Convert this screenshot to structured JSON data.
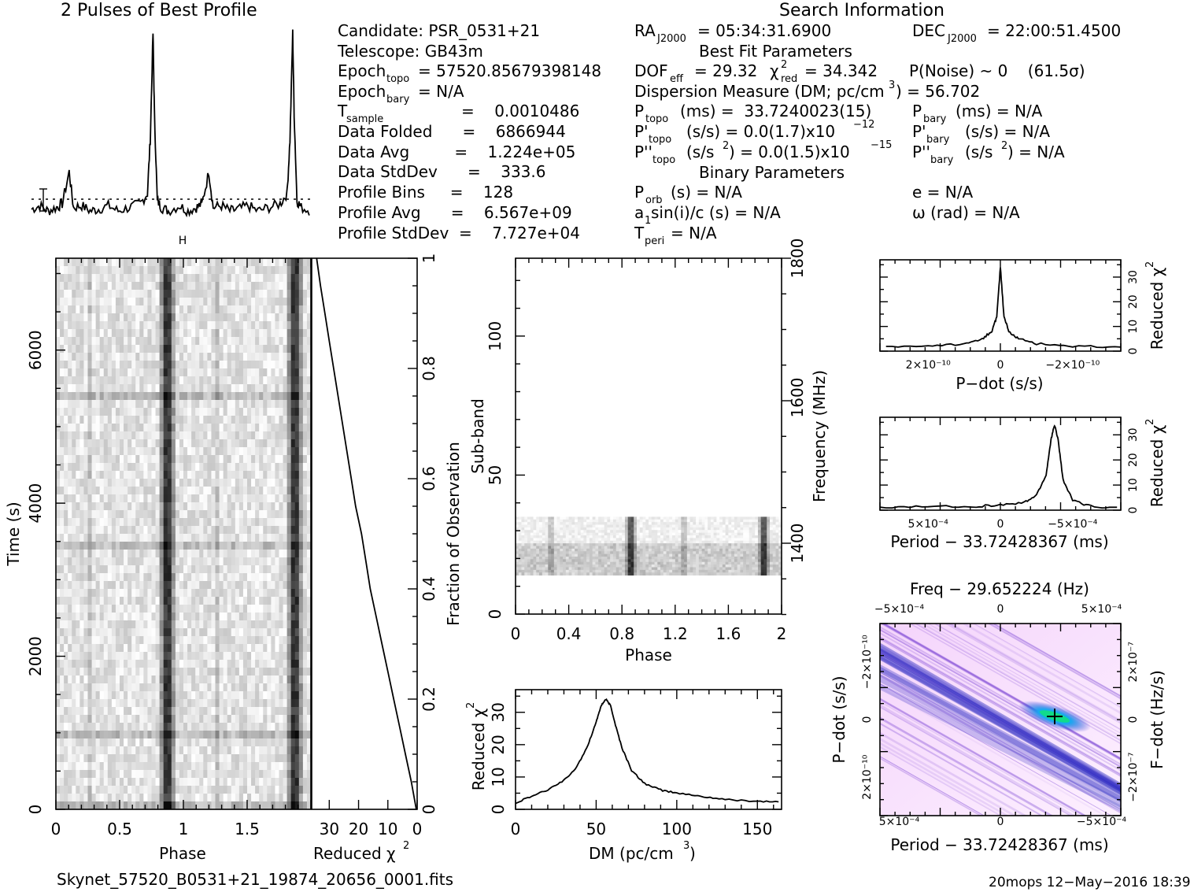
{
  "header": {
    "profile_title": "2 Pulses of Best Profile",
    "search_title": "Search Information",
    "best_fit_title": "Best Fit Parameters",
    "binary_title": "Binary Parameters"
  },
  "search_info": {
    "candidate": "Candidate:  PSR_0531+21",
    "telescope": "Telescope:  GB43m",
    "epoch_topo": "Epoch",
    "epoch_topo_sub": "topo",
    "epoch_topo_val": "= 57520.85679398148",
    "epoch_bary": "Epoch",
    "epoch_bary_sub": "bary",
    "epoch_bary_val": "= N/A",
    "tsample": "T",
    "tsample_sub": "sample",
    "tsample_val": "=    0.0010486",
    "data_folded": "Data Folded      =    6866944",
    "data_avg": "Data Avg         =    1.224e+05",
    "data_stddev": "Data StdDev      =    333.6",
    "profile_bins": "Profile Bins     =    128",
    "profile_avg": "Profile Avg      =    6.567e+09",
    "profile_stddev": "Profile StdDev  =    7.727e+04"
  },
  "best_fit": {
    "ra": "RA",
    "ra_sub": "J2000",
    "ra_val": "= 05:34:31.6900",
    "dec": "DEC",
    "dec_sub": "J2000",
    "dec_val": "= 22:00:51.4500",
    "dof": "DOF",
    "dof_sub": "eff",
    "dof_val": "= 29.32",
    "chi2": "χ",
    "chi2_sup": "2",
    "chi2_sub": "red",
    "chi2_val": "= 34.342",
    "pnoise": "P(Noise) ~ 0    (61.5σ)",
    "dm_line": "Dispersion Measure (DM; pc/cm",
    "dm_sup": "3",
    "dm_val": ") = 56.702",
    "ptopo": "P",
    "ptopo_sub": "topo",
    "ptopo_val": "(ms) =  33.7240023(15)",
    "pbary": "P",
    "pbary_sub": "bary",
    "pbary_val": "(ms) = N/A",
    "pdtopo": "P'",
    "pdtopo_sub": "topo",
    "pdtopo_val": "(s/s) = 0.0(1.7)x10",
    "pdtopo_exp": "−12",
    "pdbary": "P'",
    "pdbary_sub": "bary",
    "pdbary_val": "(s/s) = N/A",
    "pddtopo": "P''",
    "pddtopo_sub": "topo",
    "pddtopo_val": "(s/s",
    "pddtopo_sup": "2",
    "pddtopo_val2": ") = 0.0(1.5)x10",
    "pddtopo_exp": "−15",
    "pddbary": "P''",
    "pddbary_sub": "bary",
    "pddbary_val": "(s/s",
    "pddbary_sup": "2",
    "pddbary_val2": ") = N/A"
  },
  "binary": {
    "porb": "P",
    "porb_sub": "orb",
    "porb_val": "(s) = N/A",
    "e": "e = N/A",
    "a1": "a",
    "a1_sub": "1",
    "a1_val": "sin(i)/c (s) = N/A",
    "omega": "ω (rad) = N/A",
    "tperi": "T",
    "tperi_sub": "peri",
    "tperi_val": "= N/A"
  },
  "footer": {
    "filename": "Skynet_57520_B0531+21_19874_20656_0001.fits",
    "stamp": "20mops 12−May−2016 18:39"
  },
  "colors": {
    "accent_blue": "#1a1acc",
    "peak_green": "#10e080",
    "background_pink": "#ffe8ff"
  },
  "chart_data": [
    {
      "id": "profile",
      "type": "line",
      "title": "2 Pulses of Best Profile",
      "x": [
        0.0,
        0.06,
        0.12,
        0.18,
        0.22,
        0.27,
        0.3,
        0.36,
        0.42,
        0.48,
        0.55,
        0.62,
        0.7,
        0.78,
        0.83,
        0.85,
        0.87,
        0.88,
        0.9,
        0.93,
        0.98,
        1.06,
        1.12,
        1.18,
        1.22,
        1.27,
        1.3,
        1.36,
        1.42,
        1.48,
        1.55,
        1.62,
        1.7,
        1.78,
        1.83,
        1.85,
        1.87,
        1.88,
        1.9,
        1.93,
        2.0
      ],
      "values": [
        1,
        3,
        0,
        2,
        4,
        22,
        2,
        3,
        0,
        1,
        3,
        0,
        2,
        4,
        10,
        40,
        100,
        55,
        6,
        2,
        0,
        3,
        0,
        2,
        4,
        22,
        2,
        3,
        0,
        1,
        3,
        0,
        2,
        4,
        10,
        40,
        100,
        55,
        6,
        2,
        0
      ],
      "error_bar": true
    },
    {
      "id": "time-phase",
      "type": "heatmap",
      "xlabel": "Phase",
      "ylabel": "Time (s)",
      "x_ticks": [
        "0",
        "0.5",
        "1",
        "1.5"
      ],
      "y_ticks": [
        "0",
        "2000",
        "4000",
        "6000"
      ],
      "xlim": [
        0,
        2
      ],
      "ylim": [
        0,
        7200
      ],
      "pulse_phases": [
        0.87,
        1.87
      ]
    },
    {
      "id": "reduced-chi2-vs-time",
      "type": "line",
      "xlabel": "Reduced χ2",
      "ylabel": "Fraction of Observation",
      "x_ticks": [
        "30",
        "20",
        "10",
        "0"
      ],
      "y_ticks": [
        "0",
        "0.2",
        "0.4",
        "0.6",
        "0.8",
        "1"
      ],
      "xlim": [
        36,
        0
      ],
      "points": [
        [
          0.3,
          0.0
        ],
        [
          2,
          0.05
        ],
        [
          4,
          0.1
        ],
        [
          6,
          0.15
        ],
        [
          8,
          0.2
        ],
        [
          10,
          0.25
        ],
        [
          12,
          0.3
        ],
        [
          14,
          0.35
        ],
        [
          16,
          0.4
        ],
        [
          17.5,
          0.45
        ],
        [
          19,
          0.5
        ],
        [
          21,
          0.55
        ],
        [
          22.5,
          0.6
        ],
        [
          24,
          0.65
        ],
        [
          25.5,
          0.7
        ],
        [
          27,
          0.75
        ],
        [
          28.5,
          0.8
        ],
        [
          30,
          0.85
        ],
        [
          31.5,
          0.9
        ],
        [
          33,
          0.95
        ],
        [
          34.3,
          1.0
        ]
      ]
    },
    {
      "id": "subband-phase",
      "type": "heatmap",
      "xlabel": "Phase",
      "ylabel": "Sub-band",
      "y2label": "Frequency (MHz)",
      "x_ticks": [
        "0",
        "0.4",
        "0.8",
        "1.2",
        "1.6",
        "2"
      ],
      "y_ticks": [
        "0",
        "50",
        "100"
      ],
      "y2_ticks": [
        "1400",
        "1600",
        "1800"
      ],
      "xlim": [
        0,
        2
      ],
      "ylim": [
        0,
        128
      ],
      "active_subbands": [
        14,
        35
      ],
      "pulse_phases": [
        0.87,
        1.87
      ]
    },
    {
      "id": "dm-curve",
      "type": "line",
      "xlabel": "DM (pc/cm3)",
      "ylabel": "Reduced χ2",
      "x_ticks": [
        "0",
        "50",
        "100",
        "150"
      ],
      "y_ticks": [
        "0",
        "10",
        "20",
        "30"
      ],
      "xlim": [
        0,
        165
      ],
      "ylim": [
        0,
        37
      ],
      "x": [
        0,
        10,
        20,
        30,
        38,
        45,
        50,
        53,
        56,
        59,
        62,
        66,
        72,
        80,
        90,
        100,
        115,
        130,
        150,
        165
      ],
      "values": [
        2,
        4,
        6,
        9,
        13,
        20,
        27,
        32,
        34,
        32,
        26,
        19,
        12,
        8,
        6,
        5,
        4,
        3,
        2.5,
        2.3
      ]
    },
    {
      "id": "pdot-curve",
      "type": "line",
      "xlabel": "P−dot (s/s)",
      "ylabel": "Reduced χ2",
      "x_ticks": [
        "2×10⁻¹⁰",
        "0",
        "−2×10⁻¹⁰"
      ],
      "y_ticks": [
        "0",
        "10",
        "20",
        "30"
      ],
      "ylim": [
        0,
        37
      ],
      "x": [
        -1,
        -0.6,
        -0.3,
        -0.15,
        -0.07,
        -0.03,
        0,
        0.03,
        0.07,
        0.15,
        0.3,
        0.6,
        1
      ],
      "values": [
        1.5,
        2,
        3,
        5,
        8,
        14,
        34,
        14,
        8,
        5,
        3,
        2,
        1.5
      ]
    },
    {
      "id": "period-curve",
      "type": "line",
      "xlabel": "Period − 33.72428367 (ms)",
      "ylabel": "Reduced χ2",
      "x_ticks": [
        "5×10⁻⁴",
        "0",
        "−5×10⁻⁴"
      ],
      "y_ticks": [
        "0",
        "10",
        "20",
        "30"
      ],
      "ylim": [
        0,
        37
      ],
      "x": [
        1,
        0.6,
        0.2,
        0.0,
        -0.2,
        -0.3,
        -0.38,
        -0.42,
        -0.45,
        -0.48,
        -0.52,
        -0.6,
        -0.75,
        -1
      ],
      "values": [
        1,
        1.5,
        1.5,
        2,
        3,
        6,
        14,
        28,
        34,
        28,
        12,
        4,
        1.5,
        1
      ]
    },
    {
      "id": "p-pdot-plane",
      "type": "heatmap",
      "title": "Freq − 29.652224 (Hz)",
      "xlabel": "Period − 33.72428367 (ms)",
      "ylabel": "P−dot (s/s)",
      "y2label": "F−dot (Hz/s)",
      "x_ticks": [
        "5×10⁻⁴",
        "0",
        "−5×10⁻⁴"
      ],
      "x2_ticks": [
        "−5×10⁻⁴",
        "0",
        "5×10⁻⁴"
      ],
      "y_ticks": [
        "−2×10⁻¹⁰",
        "0",
        "2×10⁻¹⁰"
      ],
      "y2_ticks": [
        "2×10⁻⁷",
        "0",
        "−2×10⁻⁷"
      ],
      "best": [
        -0.45,
        0
      ]
    }
  ]
}
